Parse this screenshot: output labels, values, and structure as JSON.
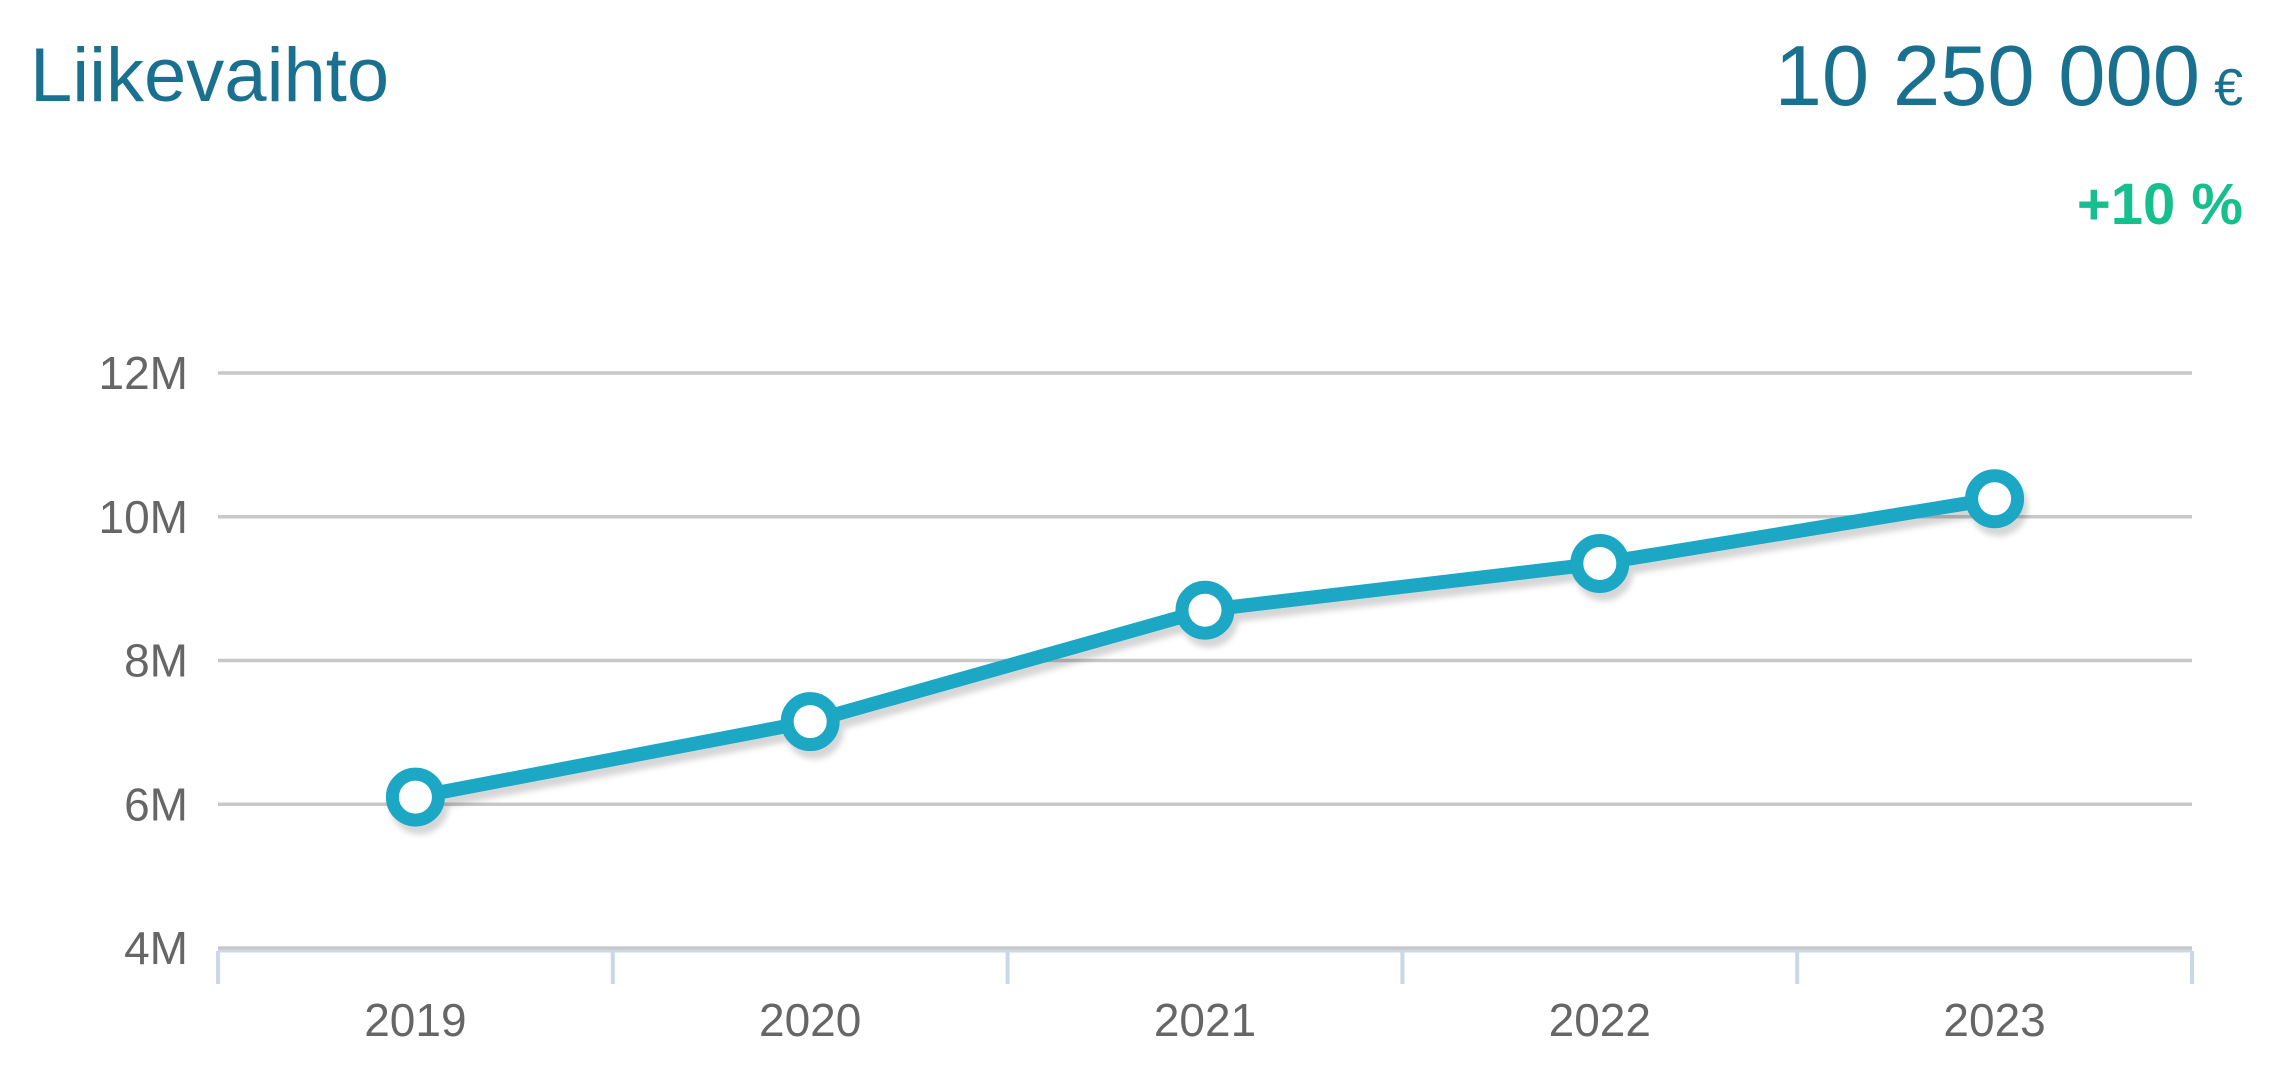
{
  "header": {
    "title": "Liikevaihto",
    "value": "10 250 000",
    "currency": "€",
    "change": "+10 %"
  },
  "colors": {
    "accent_teal": "#1aa7c4",
    "heading_teal": "#19708f",
    "positive_green": "#16bf8d",
    "gridline_gray": "#c8c8c8",
    "axis_blue": "#c9d7e6",
    "label_gray": "#666666"
  },
  "chart_data": {
    "type": "line",
    "title": "Liikevaihto",
    "unit": "€",
    "categories": [
      "2019",
      "2020",
      "2021",
      "2022",
      "2023"
    ],
    "series": [
      {
        "name": "Liikevaihto",
        "values": [
          6100000,
          7150000,
          8700000,
          9350000,
          10250000
        ]
      }
    ],
    "ylim": [
      4000000,
      12000000
    ],
    "yticks": [
      {
        "value": 4000000,
        "label": "4M"
      },
      {
        "value": 6000000,
        "label": "6M"
      },
      {
        "value": 8000000,
        "label": "8M"
      },
      {
        "value": 10000000,
        "label": "10M"
      },
      {
        "value": 12000000,
        "label": "12M"
      }
    ],
    "grid": "horizontal",
    "legend": "none",
    "marker": "open-circle",
    "latest_value_label": "10 250 000 €",
    "latest_change_label": "+10 %"
  }
}
